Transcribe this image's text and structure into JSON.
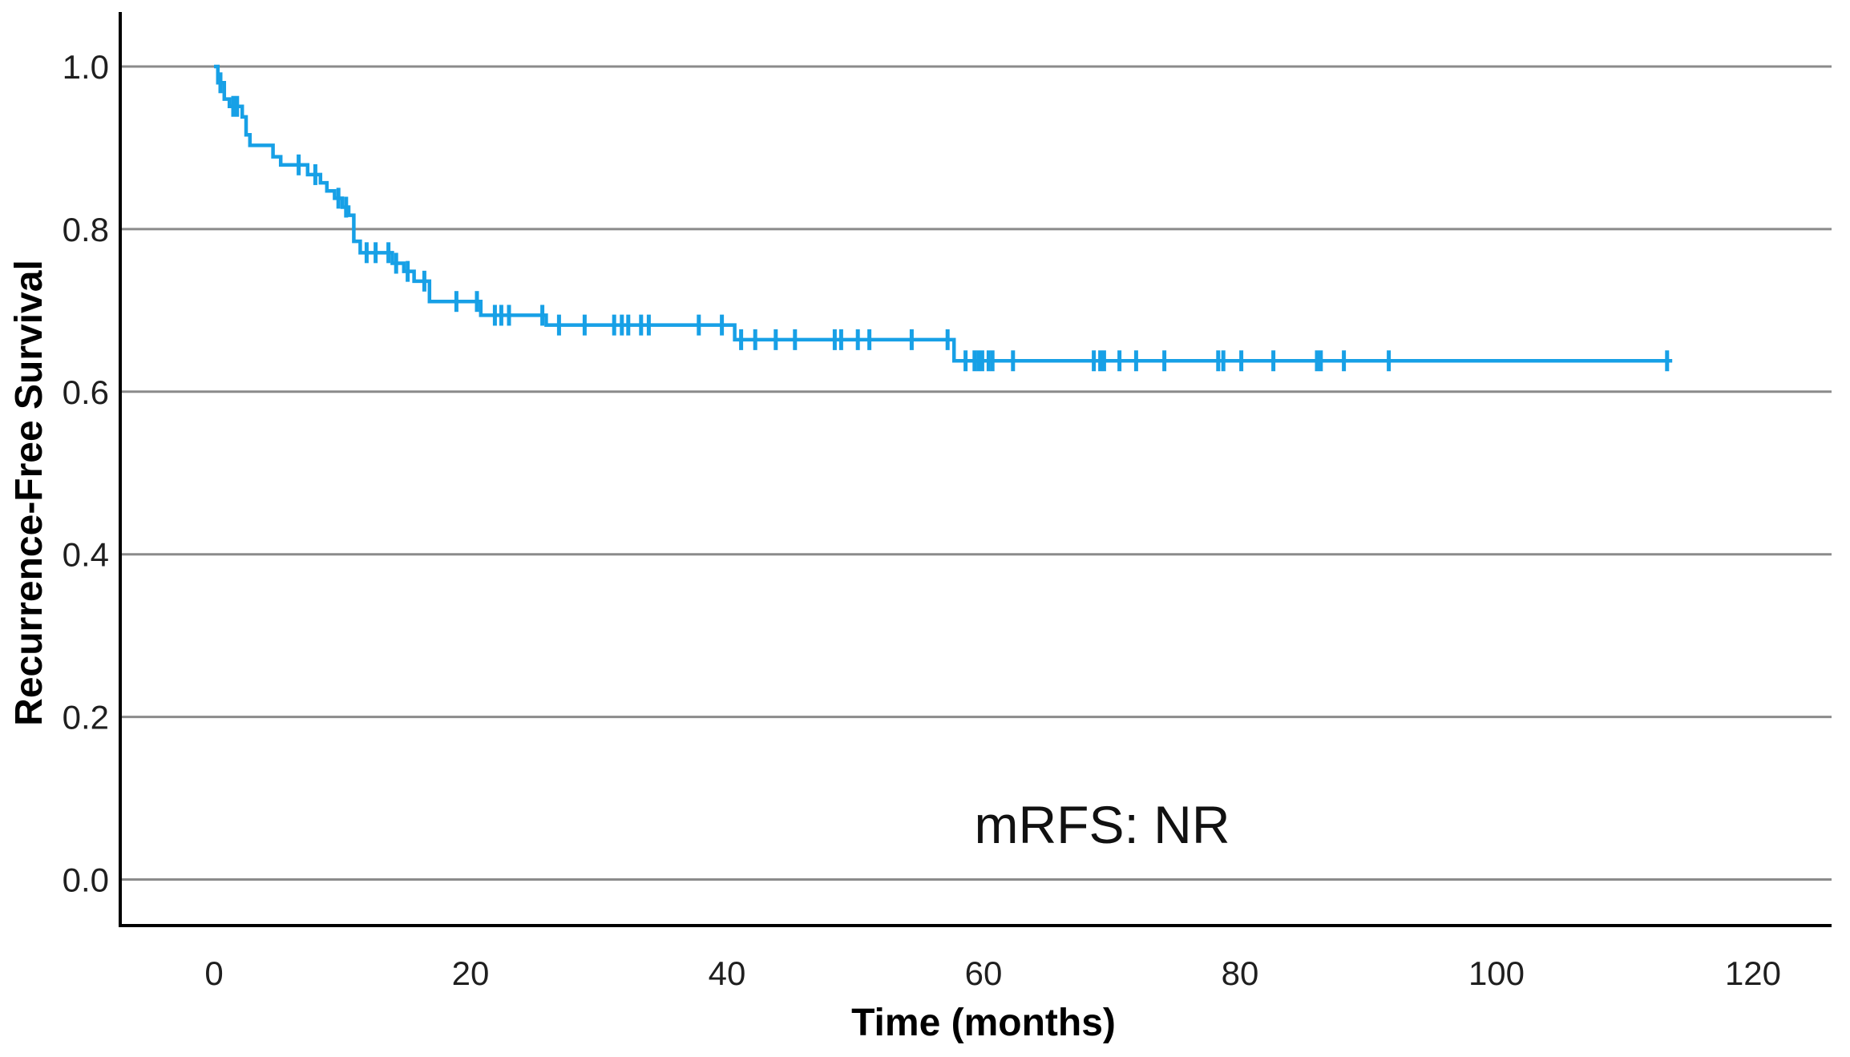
{
  "chart_data": {
    "type": "line",
    "subtype": "kaplan-meier-step-curve",
    "title": "",
    "xlabel": "Time (months)",
    "ylabel": "Recurrence-Free Survival",
    "annotation": "mRFS: NR",
    "grid": "horizontal-only",
    "legend": "none",
    "xlim": [
      -7,
      126
    ],
    "ylim": [
      -0.06,
      1.07
    ],
    "xticks": {
      "values": [
        0,
        20,
        40,
        60,
        80,
        100,
        120
      ],
      "labels": [
        "0",
        "20",
        "40",
        "60",
        "80",
        "100",
        "120"
      ]
    },
    "yticks": {
      "values": [
        0.0,
        0.2,
        0.4,
        0.6,
        0.8,
        1.0
      ],
      "labels": [
        "0.0",
        "0.2",
        "0.4",
        "0.6",
        "0.8",
        "1.0"
      ]
    },
    "colors": {
      "curve": "#17A0E6",
      "gridline": "#8B8B8B",
      "axis": "#000000",
      "text": "#1f1f1f"
    },
    "series": [
      {
        "name": "Recurrence-Free Survival",
        "color": "#17A0E6",
        "start": [
          0,
          1.0
        ],
        "end_time": 113.7,
        "median": "NR",
        "steps": [
          [
            0.3,
            0.98
          ],
          [
            0.8,
            0.96
          ],
          [
            1.2,
            0.951
          ],
          [
            2.2,
            0.938
          ],
          [
            2.5,
            0.916
          ],
          [
            2.8,
            0.903
          ],
          [
            4.6,
            0.889
          ],
          [
            5.2,
            0.879
          ],
          [
            7.3,
            0.867
          ],
          [
            8.3,
            0.857
          ],
          [
            8.8,
            0.847
          ],
          [
            9.4,
            0.838
          ],
          [
            10.0,
            0.827
          ],
          [
            10.5,
            0.817
          ],
          [
            10.9,
            0.785
          ],
          [
            11.4,
            0.771
          ],
          [
            13.9,
            0.758
          ],
          [
            14.8,
            0.748
          ],
          [
            15.6,
            0.736
          ],
          [
            16.8,
            0.711
          ],
          [
            20.8,
            0.694
          ],
          [
            25.9,
            0.682
          ],
          [
            40.6,
            0.664
          ],
          [
            57.7,
            0.638
          ]
        ],
        "censor_marks": [
          [
            0.5,
            0.98
          ],
          [
            1.5,
            0.951
          ],
          [
            1.8,
            0.951
          ],
          [
            6.6,
            0.879
          ],
          [
            7.9,
            0.867
          ],
          [
            9.7,
            0.838
          ],
          [
            10.3,
            0.827
          ],
          [
            11.9,
            0.771
          ],
          [
            12.6,
            0.771
          ],
          [
            13.6,
            0.771
          ],
          [
            14.2,
            0.758
          ],
          [
            15.1,
            0.748
          ],
          [
            16.4,
            0.736
          ],
          [
            18.9,
            0.711
          ],
          [
            20.5,
            0.711
          ],
          [
            21.9,
            0.694
          ],
          [
            22.4,
            0.694
          ],
          [
            23.0,
            0.694
          ],
          [
            25.6,
            0.694
          ],
          [
            26.9,
            0.682
          ],
          [
            28.9,
            0.682
          ],
          [
            31.2,
            0.682
          ],
          [
            31.8,
            0.682
          ],
          [
            32.3,
            0.682
          ],
          [
            33.3,
            0.682
          ],
          [
            33.9,
            0.682
          ],
          [
            37.8,
            0.682
          ],
          [
            39.6,
            0.682
          ],
          [
            41.1,
            0.664
          ],
          [
            42.2,
            0.664
          ],
          [
            43.8,
            0.664
          ],
          [
            45.3,
            0.664
          ],
          [
            48.4,
            0.664
          ],
          [
            48.9,
            0.664
          ],
          [
            50.2,
            0.664
          ],
          [
            51.1,
            0.664
          ],
          [
            54.4,
            0.664
          ],
          [
            57.2,
            0.664
          ],
          [
            58.6,
            0.638
          ],
          [
            59.3,
            0.638
          ],
          [
            59.6,
            0.638
          ],
          [
            59.9,
            0.638
          ],
          [
            60.4,
            0.638
          ],
          [
            60.7,
            0.638
          ],
          [
            62.3,
            0.638
          ],
          [
            68.6,
            0.638
          ],
          [
            69.1,
            0.638
          ],
          [
            69.4,
            0.638
          ],
          [
            70.6,
            0.638
          ],
          [
            71.9,
            0.638
          ],
          [
            74.1,
            0.638
          ],
          [
            78.3,
            0.638
          ],
          [
            78.7,
            0.638
          ],
          [
            80.1,
            0.638
          ],
          [
            82.6,
            0.638
          ],
          [
            86.0,
            0.638
          ],
          [
            86.3,
            0.638
          ],
          [
            88.1,
            0.638
          ],
          [
            91.6,
            0.638
          ],
          [
            113.3,
            0.638
          ]
        ]
      }
    ]
  }
}
